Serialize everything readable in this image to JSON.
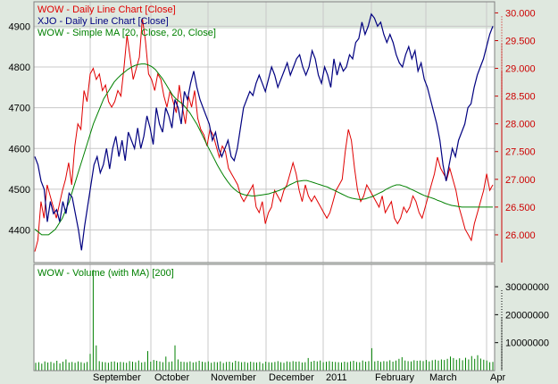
{
  "colors": {
    "background": "#dfe8df",
    "plot_bg": "#ffffff",
    "grid": "#c8c8c8",
    "wow_close": "#e00000",
    "xjo_close": "#000080",
    "sma": "#008000",
    "volume": "#008000",
    "axis_text": "#000000",
    "right_axis_text": "#cc0000"
  },
  "chart_data": [
    {
      "type": "line",
      "panel": "price",
      "legend_placement": "top-left",
      "grid": true,
      "x_labels": [
        "September",
        "October",
        "November",
        "December",
        "2011",
        "February",
        "March",
        "Apr"
      ],
      "left_axis": {
        "ticks": [
          "4900",
          "4800",
          "4700",
          "4600",
          "4500",
          "4400"
        ],
        "ylim": [
          4320,
          4960
        ]
      },
      "right_axis": {
        "ticks": [
          "30.000",
          "29.500",
          "29.000",
          "28.500",
          "28.000",
          "27.500",
          "27.000",
          "26.500",
          "26.000"
        ],
        "ylim": [
          25.5,
          30.2
        ]
      },
      "series": [
        {
          "name": "WOW - Daily Line Chart [Close]",
          "axis": "right",
          "color": "#e00000",
          "values": [
            25.7,
            25.9,
            26.6,
            26.3,
            26.9,
            26.7,
            26.5,
            26.3,
            26.55,
            26.8,
            27.0,
            27.3,
            26.9,
            27.6,
            28.0,
            27.9,
            28.6,
            28.4,
            28.9,
            29.0,
            28.8,
            28.9,
            28.6,
            28.7,
            28.4,
            28.3,
            28.4,
            28.6,
            28.5,
            29.0,
            29.6,
            29.2,
            28.8,
            29.0,
            29.2,
            29.9,
            29.5,
            28.9,
            28.8,
            28.6,
            28.9,
            28.8,
            28.5,
            28.3,
            28.6,
            28.4,
            28.2,
            28.7,
            28.3,
            28.0,
            28.5,
            28.3,
            28.6,
            28.1,
            27.9,
            27.8,
            27.6,
            27.9,
            27.8,
            27.6,
            27.4,
            27.6,
            27.5,
            27.2,
            27.1,
            27.0,
            26.9,
            26.7,
            26.6,
            26.7,
            26.8,
            26.9,
            26.5,
            26.4,
            26.6,
            26.2,
            26.4,
            26.5,
            26.8,
            26.7,
            26.6,
            26.8,
            26.9,
            27.1,
            27.3,
            27.1,
            26.8,
            26.6,
            26.9,
            26.7,
            26.6,
            26.7,
            26.6,
            26.5,
            26.4,
            26.3,
            26.4,
            26.6,
            26.8,
            26.9,
            27.0,
            27.5,
            27.9,
            27.7,
            27.2,
            26.8,
            26.6,
            26.7,
            26.9,
            26.8,
            26.7,
            26.6,
            26.5,
            26.7,
            26.4,
            26.5,
            26.6,
            26.3,
            26.2,
            26.3,
            26.5,
            26.4,
            26.5,
            26.7,
            26.6,
            26.4,
            26.3,
            26.5,
            26.7,
            26.9,
            27.1,
            27.4,
            27.2,
            27.1,
            27.0,
            27.2,
            27.0,
            26.8,
            26.5,
            26.3,
            26.1,
            26.0,
            25.9,
            26.2,
            26.4,
            26.6,
            26.8,
            27.1,
            26.8,
            26.9
          ]
        },
        {
          "name": "XJO - Daily Line Chart [Close]",
          "axis": "left",
          "color": "#000080",
          "values": [
            4580,
            4560,
            4520,
            4500,
            4420,
            4470,
            4440,
            4450,
            4420,
            4470,
            4440,
            4490,
            4480,
            4440,
            4400,
            4350,
            4410,
            4460,
            4510,
            4560,
            4580,
            4540,
            4560,
            4600,
            4550,
            4600,
            4630,
            4580,
            4620,
            4570,
            4640,
            4620,
            4600,
            4650,
            4600,
            4630,
            4680,
            4650,
            4610,
            4700,
            4660,
            4640,
            4700,
            4680,
            4650,
            4720,
            4700,
            4660,
            4740,
            4720,
            4760,
            4790,
            4750,
            4720,
            4700,
            4680,
            4660,
            4620,
            4640,
            4600,
            4580,
            4600,
            4620,
            4580,
            4570,
            4600,
            4650,
            4700,
            4720,
            4740,
            4730,
            4760,
            4780,
            4760,
            4740,
            4770,
            4800,
            4780,
            4750,
            4770,
            4790,
            4810,
            4780,
            4800,
            4820,
            4830,
            4800,
            4780,
            4800,
            4840,
            4820,
            4780,
            4760,
            4800,
            4780,
            4750,
            4820,
            4780,
            4810,
            4790,
            4800,
            4830,
            4820,
            4860,
            4870,
            4910,
            4880,
            4900,
            4930,
            4920,
            4900,
            4910,
            4880,
            4860,
            4880,
            4860,
            4830,
            4810,
            4800,
            4830,
            4850,
            4820,
            4840,
            4790,
            4810,
            4770,
            4750,
            4720,
            4690,
            4660,
            4620,
            4560,
            4520,
            4560,
            4600,
            4580,
            4620,
            4640,
            4660,
            4700,
            4710,
            4750,
            4780,
            4800,
            4820,
            4850,
            4880,
            4900
          ]
        },
        {
          "name": "WOW - Simple MA [20, Close, 20, Close]",
          "axis": "right",
          "color": "#008000",
          "values": [
            26.1,
            26.05,
            26.0,
            26.0,
            26.0,
            26.05,
            26.1,
            26.2,
            26.3,
            26.45,
            26.6,
            26.8,
            27.0,
            27.2,
            27.4,
            27.6,
            27.8,
            28.0,
            28.15,
            28.3,
            28.45,
            28.55,
            28.65,
            28.75,
            28.82,
            28.88,
            28.93,
            28.98,
            29.02,
            29.05,
            29.07,
            29.08,
            29.08,
            29.06,
            29.03,
            28.98,
            28.9,
            28.82,
            28.72,
            28.62,
            28.52,
            28.45,
            28.4,
            28.35,
            28.28,
            28.2,
            28.1,
            28.0,
            27.88,
            27.75,
            27.62,
            27.5,
            27.38,
            27.26,
            27.15,
            27.05,
            26.96,
            26.88,
            26.82,
            26.77,
            26.74,
            26.72,
            26.71,
            26.7,
            26.7,
            26.71,
            26.72,
            26.73,
            26.74,
            26.76,
            26.78,
            26.8,
            26.83,
            26.86,
            26.9,
            26.93,
            26.96,
            26.97,
            26.98,
            26.98,
            26.96,
            26.94,
            26.92,
            26.9,
            26.88,
            26.86,
            26.83,
            26.8,
            26.77,
            26.74,
            26.71,
            26.68,
            26.66,
            26.65,
            26.64,
            26.64,
            26.65,
            26.67,
            26.69,
            26.72,
            26.75,
            26.78,
            26.82,
            26.85,
            26.88,
            26.9,
            26.9,
            26.88,
            26.86,
            26.83,
            26.8,
            26.77,
            26.74,
            26.71,
            26.69,
            26.67,
            26.65,
            26.62,
            26.6,
            26.57,
            26.55,
            26.53,
            26.52,
            26.51,
            26.5,
            26.5,
            26.5,
            26.5,
            26.5,
            26.5,
            26.5,
            26.5,
            26.5,
            26.5
          ]
        }
      ]
    },
    {
      "type": "bar",
      "panel": "volume",
      "legend_placement": "top-left",
      "grid": true,
      "y_axis": {
        "ticks": [
          "30000000",
          "20000000",
          "10000000"
        ],
        "ylim": [
          0,
          38000000
        ]
      },
      "series": [
        {
          "name": "WOW - Volume (with MA) [200]",
          "color": "#008000",
          "values": [
            2800000,
            3000000,
            2500000,
            3300000,
            2900000,
            3100000,
            2700000,
            3500000,
            2600000,
            3200000,
            4000000,
            2900000,
            3100000,
            2800000,
            3300000,
            3000000,
            2700000,
            3100000,
            6000000,
            36000000,
            9000000,
            3400000,
            3100000,
            3000000,
            2800000,
            3200000,
            3300000,
            2900000,
            3100000,
            3000000,
            2800000,
            3400000,
            3200000,
            3000000,
            3600000,
            2900000,
            3100000,
            7000000,
            3200000,
            3800000,
            3500000,
            3300000,
            3000000,
            5000000,
            3100000,
            3300000,
            9000000,
            4000000,
            3200000,
            3100000,
            3000000,
            3300000,
            2900000,
            3100000,
            3500000,
            3200000,
            3000000,
            3300000,
            2800000,
            3100000,
            3000000,
            3300000,
            2700000,
            3100000,
            3200000,
            2900000,
            3500000,
            3300000,
            3000000,
            3100000,
            2800000,
            3200000,
            3000000,
            2900000,
            3100000,
            2600000,
            3200000,
            3000000,
            2900000,
            3100000,
            3400000,
            3000000,
            2800000,
            3300000,
            3100000,
            3400000,
            3200000,
            3300000,
            2900000,
            3000000,
            4500000,
            3200000,
            3500000,
            3300000,
            3600000,
            3000000,
            3200000,
            3400000,
            3200000,
            3100000,
            3000000,
            2900000,
            3200000,
            3000000,
            3300000,
            3500000,
            3100000,
            3000000,
            3600000,
            3200000,
            3400000,
            8000000,
            3300000,
            3500000,
            3100000,
            3400000,
            3300000,
            3700000,
            3200000,
            3600000,
            4200000,
            4800000,
            3600000,
            3400000,
            3300000,
            3700000,
            3500000,
            3600000,
            3400000,
            3800000,
            3300000,
            3700000,
            3900000,
            3600000,
            4000000,
            3800000,
            4200000,
            5000000,
            4500000,
            3900000,
            4400000,
            3700000,
            4600000,
            4000000,
            5200000,
            4200000,
            5500000,
            4300000,
            3900000,
            3600000,
            3000000,
            3100000
          ]
        }
      ]
    }
  ]
}
